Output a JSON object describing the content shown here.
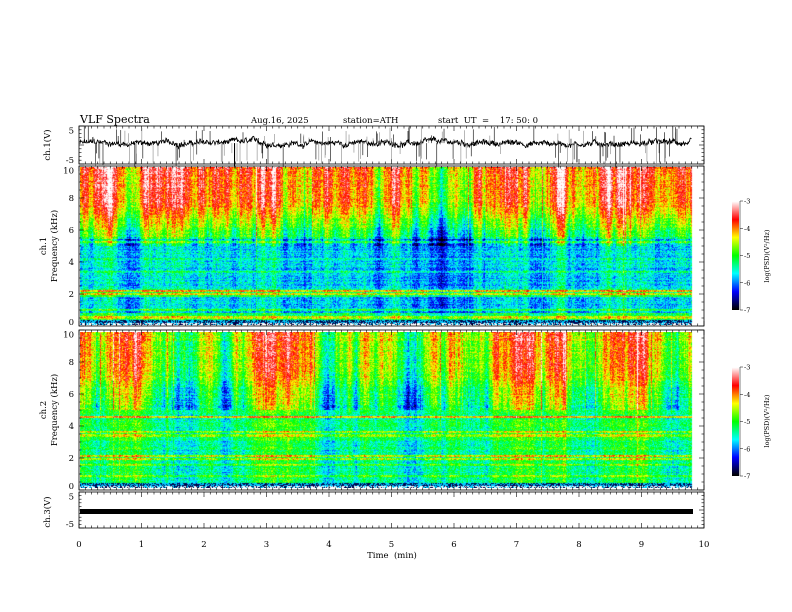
{
  "chart_data": {
    "type": "heatmap",
    "title": "VLF  Spectra",
    "date": "Aug.16, 2025",
    "station": "station=ATH",
    "start_time": "start  UT  =    17: 50: 0",
    "xlabel": "Time  (min)",
    "xlim": [
      0,
      10
    ],
    "x_ticks": [
      "0",
      "1",
      "2",
      "3",
      "4",
      "5",
      "6",
      "7",
      "8",
      "9",
      "10"
    ],
    "data_end_min": 9.8,
    "panels": [
      {
        "name": "ch1-waveform",
        "type": "line",
        "ylabel": "ch.1(V)",
        "ylim": [
          -5,
          5
        ],
        "y_ticks": [
          "5",
          "-5"
        ],
        "mean_v": 0.5
      },
      {
        "name": "ch1-spectrogram",
        "type": "heatmap",
        "ylabel": "ch.1\nFrequency  (kHz)",
        "ylabel_line1": "ch.1",
        "ylabel_line2": "Frequency  (kHz)",
        "ylim": [
          0,
          10
        ],
        "y_ticks": [
          "0",
          "2",
          "4",
          "6",
          "8",
          "10"
        ]
      },
      {
        "name": "ch2-spectrogram",
        "type": "heatmap",
        "ylabel_line1": "ch.2",
        "ylabel_line2": "Frequency  (kHz)",
        "ylim": [
          0,
          10
        ],
        "y_ticks": [
          "0",
          "2",
          "4",
          "6",
          "8",
          "10"
        ]
      },
      {
        "name": "ch3-waveform",
        "type": "line",
        "ylabel": "ch.3(V)",
        "ylim": [
          -5,
          5
        ],
        "y_ticks": [
          "5",
          "-5"
        ],
        "mean_v": 0
      }
    ],
    "colorbar": {
      "label": "log(PSD)(V²/Hz)",
      "range": [
        -7,
        -3
      ],
      "ticks": [
        "-3",
        "-4",
        "-5",
        "-6",
        "-7"
      ],
      "colors": [
        "#000000",
        "#0000ff",
        "#00ffff",
        "#00ff00",
        "#ffff00",
        "#ff0000",
        "#ffffff"
      ]
    }
  }
}
